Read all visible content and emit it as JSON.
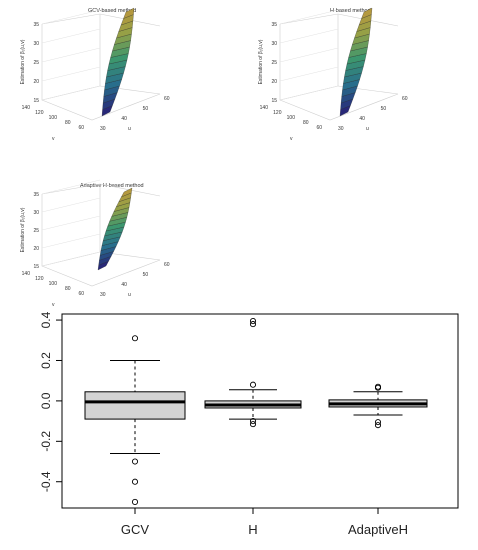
{
  "surface_panels": [
    {
      "title": "GCV-based method",
      "zlabel": "Estimation of β₁(u,v)",
      "zticks": [
        "15",
        "20",
        "25",
        "30",
        "35"
      ],
      "v_label": "v",
      "v_ticks": [
        "140",
        "120",
        "100",
        "80",
        "60"
      ],
      "u_label": "u",
      "u_ticks": [
        "30",
        "40",
        "50",
        "60"
      ]
    },
    {
      "title": "H-based method",
      "zlabel": "Estimation of β₁(u,v)",
      "zticks": [
        "15",
        "20",
        "25",
        "30",
        "35"
      ],
      "v_label": "v",
      "v_ticks": [
        "140",
        "120",
        "100",
        "80",
        "60"
      ],
      "u_label": "u",
      "u_ticks": [
        "30",
        "40",
        "50",
        "60"
      ]
    },
    {
      "title": "Adaptive H-based method",
      "zlabel": "Estimation of β₁(u,v)",
      "zticks": [
        "15",
        "20",
        "25",
        "30",
        "35"
      ],
      "v_label": "v",
      "v_ticks": [
        "140",
        "120",
        "100",
        "80",
        "60"
      ],
      "u_label": "u",
      "u_ticks": [
        "30",
        "40",
        "50",
        "60"
      ]
    }
  ],
  "chart_data": {
    "type": "boxplot",
    "categories": [
      "GCV",
      "H",
      "AdaptiveH"
    ],
    "yticks": [
      "-0.4",
      "-0.2",
      "0.0",
      "0.2",
      "0.4"
    ],
    "ylim": [
      -0.53,
      0.43
    ],
    "boxes": [
      {
        "name": "GCV",
        "whisker_low": -0.26,
        "q1": -0.09,
        "median": -0.005,
        "q3": 0.045,
        "whisker_high": 0.2,
        "outliers": [
          0.31,
          -0.3,
          -0.4,
          -0.5
        ]
      },
      {
        "name": "H",
        "whisker_low": -0.09,
        "q1": -0.035,
        "median": -0.02,
        "q3": 0.0,
        "whisker_high": 0.055,
        "outliers": [
          0.395,
          0.38,
          0.08,
          -0.1,
          -0.115
        ]
      },
      {
        "name": "AdaptiveH",
        "whisker_low": -0.07,
        "q1": -0.03,
        "median": -0.015,
        "q3": 0.005,
        "whisker_high": 0.045,
        "outliers": [
          0.07,
          0.065,
          -0.105,
          -0.12
        ]
      }
    ],
    "colors": {
      "box_fill": "#d3d3d3",
      "stroke": "#000000"
    }
  }
}
